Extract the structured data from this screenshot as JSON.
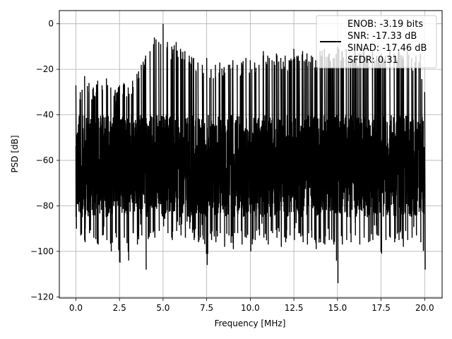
{
  "chart_data": {
    "type": "line",
    "xlabel": "Frequency [MHz]",
    "ylabel": "PSD [dB]",
    "xlim": [
      -0.95,
      21.0
    ],
    "ylim": [
      -120.5,
      5.8
    ],
    "xticks": [
      0.0,
      2.5,
      5.0,
      7.5,
      10.0,
      12.5,
      15.0,
      17.5,
      20.0
    ],
    "xtick_labels": [
      "0.0",
      "2.5",
      "5.0",
      "7.5",
      "10.0",
      "12.5",
      "15.0",
      "17.5",
      "20.0"
    ],
    "yticks": [
      0,
      -20,
      -40,
      -60,
      -80,
      -100,
      -120
    ],
    "ytick_labels": [
      "0",
      "−20",
      "−40",
      "−60",
      "−80",
      "−100",
      "−120"
    ],
    "grid": true,
    "legend_position": "top-right",
    "legend_lines": [
      "ENOB: -3.19 bits",
      "SNR: -17.33 dB",
      "SINAD: -17.46 dB",
      "SFDR: 0.31"
    ],
    "line_color": "#000000",
    "series": [
      {
        "x": [
          0.0,
          0.25,
          0.5,
          0.75,
          1.0,
          1.25,
          1.5,
          1.75,
          2.0,
          2.25,
          2.5,
          2.75,
          3.0,
          3.25,
          3.5,
          3.75,
          4.0,
          4.25,
          4.5,
          4.75,
          5.0,
          5.25,
          5.5,
          5.75,
          6.0,
          6.25,
          6.5,
          6.75,
          7.0,
          7.25,
          7.5,
          7.75,
          8.0,
          8.25,
          8.5,
          8.75,
          9.0,
          9.25,
          9.5,
          9.75,
          10.0,
          10.25,
          10.5,
          10.75,
          11.0,
          11.25,
          11.5,
          11.75,
          12.0,
          12.25,
          12.5,
          12.75,
          13.0,
          13.25,
          13.5,
          13.75,
          14.0,
          14.25,
          14.5,
          14.75,
          15.0,
          15.25,
          15.5,
          15.75,
          16.0,
          16.25,
          16.5,
          16.75,
          17.0,
          17.25,
          17.5,
          17.75,
          18.0,
          18.25,
          18.5,
          18.75,
          19.0,
          19.25,
          19.5,
          19.75,
          20.0
        ],
        "upper": [
          -27,
          -30,
          -23,
          -26,
          -28,
          -25,
          -27,
          -24,
          -28,
          -29,
          -27,
          -26,
          -28,
          -25,
          -22,
          -18,
          -14,
          -12,
          -6,
          -8,
          0,
          -8,
          -10,
          -8,
          -11,
          -12,
          -14,
          -15,
          -17,
          -18,
          -15,
          -20,
          -18,
          -17,
          -19,
          -18,
          -16,
          -18,
          -17,
          -15,
          -16,
          -17,
          -18,
          -12,
          -14,
          -16,
          -13,
          -15,
          -14,
          -16,
          -11,
          -14,
          -12,
          -13,
          -14,
          -16,
          -12,
          -11,
          -13,
          -15,
          -10,
          -12,
          -11,
          -14,
          -12,
          -13,
          -11,
          -15,
          -12,
          -14,
          -13,
          -14,
          -12,
          -13,
          -11,
          -14,
          -12,
          -15,
          -14,
          -13,
          -30
        ],
        "lower": [
          -90,
          -93,
          -96,
          -92,
          -94,
          -97,
          -93,
          -95,
          -100,
          -92,
          -105,
          -94,
          -104,
          -92,
          -97,
          -93,
          -108,
          -92,
          -94,
          -91,
          -89,
          -92,
          -95,
          -91,
          -93,
          -94,
          -90,
          -95,
          -96,
          -93,
          -106,
          -95,
          -96,
          -92,
          -98,
          -93,
          -99,
          -92,
          -97,
          -94,
          -100,
          -95,
          -93,
          -94,
          -97,
          -92,
          -94,
          -98,
          -96,
          -93,
          -95,
          -92,
          -96,
          -97,
          -94,
          -99,
          -96,
          -97,
          -95,
          -96,
          -114,
          -97,
          -95,
          -96,
          -93,
          -97,
          -94,
          -96,
          -95,
          -93,
          -101,
          -95,
          -94,
          -96,
          -95,
          -98,
          -95,
          -94,
          -93,
          -96,
          -108
        ]
      }
    ]
  }
}
